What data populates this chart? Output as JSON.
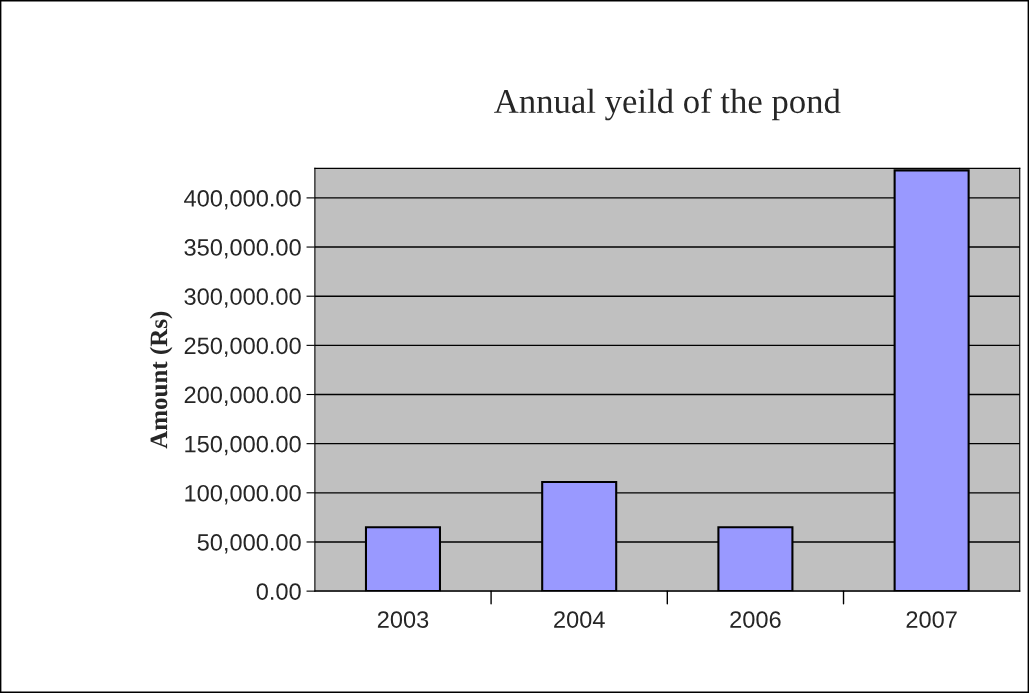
{
  "chart_data": {
    "type": "bar",
    "title": "Annual yeild of the pond",
    "ylabel": "Amount (Rs)",
    "categories": [
      "2003",
      "2004",
      "2006",
      "2007"
    ],
    "values": [
      65000,
      111000,
      65000,
      428000
    ],
    "color": "#9999ff",
    "ylim": [
      0,
      430000
    ],
    "yticks": [
      {
        "value": 0,
        "label": "0.00"
      },
      {
        "value": 50000,
        "label": "50,000.00"
      },
      {
        "value": 100000,
        "label": "100,000.00"
      },
      {
        "value": 150000,
        "label": "150,000.00"
      },
      {
        "value": 200000,
        "label": "200,000.00"
      },
      {
        "value": 250000,
        "label": "250,000.00"
      },
      {
        "value": 300000,
        "label": "300,000.00"
      },
      {
        "value": 350000,
        "label": "350,000.00"
      },
      {
        "value": 400000,
        "label": "400,000.00"
      }
    ],
    "grid": "y",
    "legend": false
  }
}
